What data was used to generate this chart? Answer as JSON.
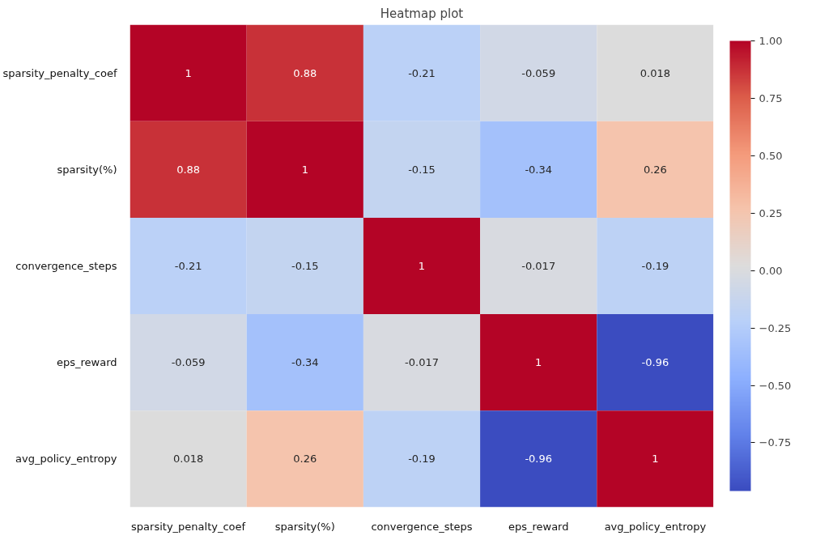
{
  "chart_data": {
    "type": "heatmap",
    "title": "Heatmap plot",
    "categories": [
      "sparsity_penalty_coef",
      "sparsity(%)",
      "convergence_steps",
      "eps_reward",
      "avg_policy_entropy"
    ],
    "y_categories": [
      "sparsity_penalty_coef",
      "sparsity(%)",
      "convergence_steps",
      "eps_reward",
      "avg_policy_entropy"
    ],
    "cells": [
      [
        1,
        0.88,
        -0.21,
        -0.059,
        0.018
      ],
      [
        0.88,
        1,
        -0.15,
        -0.34,
        0.26
      ],
      [
        -0.21,
        -0.15,
        1,
        -0.017,
        -0.19
      ],
      [
        -0.059,
        -0.34,
        -0.017,
        1,
        -0.96
      ],
      [
        0.018,
        0.26,
        -0.19,
        -0.96,
        1
      ]
    ],
    "clim": [
      -0.96,
      1
    ],
    "cticks": [
      {
        "value": -0.75,
        "label": "−0.75"
      },
      {
        "value": -0.5,
        "label": "−0.50"
      },
      {
        "value": -0.25,
        "label": "−0.25"
      },
      {
        "value": 0,
        "label": "0.00"
      },
      {
        "value": 0.25,
        "label": "0.25"
      },
      {
        "value": 0.5,
        "label": "0.50"
      },
      {
        "value": 0.75,
        "label": "0.75"
      },
      {
        "value": 1,
        "label": "1.00"
      }
    ],
    "data_labels": true
  }
}
